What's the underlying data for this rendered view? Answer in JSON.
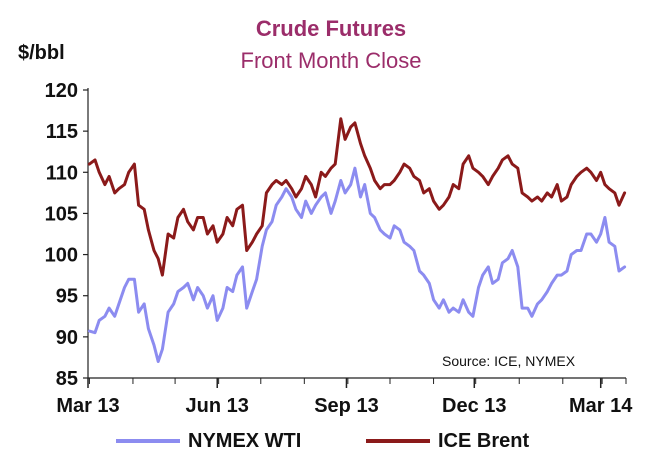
{
  "chart_data": {
    "type": "line",
    "title": "Crude Futures",
    "subtitle": "Front Month Close",
    "ylabel": "$/bbl",
    "source": "Source: ICE, NYMEX",
    "ylim": [
      85,
      120
    ],
    "y_ticks": [
      85,
      90,
      95,
      100,
      105,
      110,
      115,
      120
    ],
    "x_range": [
      "2013-02-28",
      "2014-03-18"
    ],
    "x_ticks": [
      {
        "label": "Mar 13",
        "date": "2013-02-28"
      },
      {
        "label": "Jun 13",
        "date": "2013-05-31"
      },
      {
        "label": "Sep 13",
        "date": "2013-08-31"
      },
      {
        "label": "Dec 13",
        "date": "2013-11-30"
      },
      {
        "label": "Mar 14",
        "date": "2014-02-28"
      }
    ],
    "grid": false,
    "legend_position": "bottom",
    "series": [
      {
        "name": "NYMEX WTI",
        "color": "#8c8cf0",
        "points": [
          [
            "2013-03-01",
            90.7
          ],
          [
            "2013-03-05",
            90.5
          ],
          [
            "2013-03-08",
            92.0
          ],
          [
            "2013-03-12",
            92.5
          ],
          [
            "2013-03-15",
            93.5
          ],
          [
            "2013-03-19",
            92.5
          ],
          [
            "2013-03-22",
            94.0
          ],
          [
            "2013-03-26",
            96.0
          ],
          [
            "2013-03-29",
            97.0
          ],
          [
            "2013-04-02",
            97.0
          ],
          [
            "2013-04-05",
            93.0
          ],
          [
            "2013-04-09",
            94.0
          ],
          [
            "2013-04-12",
            91.0
          ],
          [
            "2013-04-16",
            89.0
          ],
          [
            "2013-04-19",
            87.0
          ],
          [
            "2013-04-22",
            88.5
          ],
          [
            "2013-04-26",
            93.0
          ],
          [
            "2013-04-30",
            94.0
          ],
          [
            "2013-05-03",
            95.5
          ],
          [
            "2013-05-07",
            96.0
          ],
          [
            "2013-05-10",
            96.5
          ],
          [
            "2013-05-14",
            94.5
          ],
          [
            "2013-05-17",
            96.0
          ],
          [
            "2013-05-21",
            95.0
          ],
          [
            "2013-05-24",
            93.5
          ],
          [
            "2013-05-28",
            95.0
          ],
          [
            "2013-05-31",
            92.0
          ],
          [
            "2013-06-04",
            93.5
          ],
          [
            "2013-06-07",
            96.0
          ],
          [
            "2013-06-11",
            95.5
          ],
          [
            "2013-06-14",
            97.5
          ],
          [
            "2013-06-18",
            98.5
          ],
          [
            "2013-06-21",
            93.5
          ],
          [
            "2013-06-25",
            95.5
          ],
          [
            "2013-06-28",
            97.0
          ],
          [
            "2013-07-02",
            101.0
          ],
          [
            "2013-07-05",
            103.0
          ],
          [
            "2013-07-09",
            104.0
          ],
          [
            "2013-07-12",
            106.0
          ],
          [
            "2013-07-16",
            107.0
          ],
          [
            "2013-07-19",
            108.0
          ],
          [
            "2013-07-23",
            107.0
          ],
          [
            "2013-07-26",
            105.5
          ],
          [
            "2013-07-30",
            104.5
          ],
          [
            "2013-08-02",
            106.5
          ],
          [
            "2013-08-06",
            105.0
          ],
          [
            "2013-08-09",
            106.0
          ],
          [
            "2013-08-13",
            107.0
          ],
          [
            "2013-08-16",
            107.5
          ],
          [
            "2013-08-20",
            105.0
          ],
          [
            "2013-08-23",
            106.5
          ],
          [
            "2013-08-27",
            109.0
          ],
          [
            "2013-08-30",
            107.5
          ],
          [
            "2013-09-03",
            108.5
          ],
          [
            "2013-09-06",
            110.5
          ],
          [
            "2013-09-10",
            107.0
          ],
          [
            "2013-09-13",
            108.5
          ],
          [
            "2013-09-17",
            105.0
          ],
          [
            "2013-09-20",
            104.5
          ],
          [
            "2013-09-24",
            103.0
          ],
          [
            "2013-09-27",
            102.5
          ],
          [
            "2013-10-01",
            102.0
          ],
          [
            "2013-10-04",
            103.5
          ],
          [
            "2013-10-08",
            103.0
          ],
          [
            "2013-10-11",
            101.5
          ],
          [
            "2013-10-15",
            101.0
          ],
          [
            "2013-10-18",
            100.5
          ],
          [
            "2013-10-22",
            98.0
          ],
          [
            "2013-10-25",
            97.5
          ],
          [
            "2013-10-29",
            96.5
          ],
          [
            "2013-11-01",
            94.5
          ],
          [
            "2013-11-05",
            93.5
          ],
          [
            "2013-11-08",
            94.5
          ],
          [
            "2013-11-12",
            93.0
          ],
          [
            "2013-11-15",
            93.5
          ],
          [
            "2013-11-19",
            93.0
          ],
          [
            "2013-11-22",
            94.5
          ],
          [
            "2013-11-26",
            93.0
          ],
          [
            "2013-11-29",
            92.5
          ],
          [
            "2013-12-03",
            96.0
          ],
          [
            "2013-12-06",
            97.5
          ],
          [
            "2013-12-10",
            98.5
          ],
          [
            "2013-12-13",
            96.5
          ],
          [
            "2013-12-17",
            97.0
          ],
          [
            "2013-12-20",
            99.0
          ],
          [
            "2013-12-24",
            99.5
          ],
          [
            "2013-12-27",
            100.5
          ],
          [
            "2013-12-31",
            98.5
          ],
          [
            "2014-01-03",
            93.5
          ],
          [
            "2014-01-07",
            93.5
          ],
          [
            "2014-01-10",
            92.5
          ],
          [
            "2014-01-14",
            94.0
          ],
          [
            "2014-01-17",
            94.5
          ],
          [
            "2014-01-21",
            95.5
          ],
          [
            "2014-01-24",
            96.5
          ],
          [
            "2014-01-28",
            97.5
          ],
          [
            "2014-01-31",
            97.5
          ],
          [
            "2014-02-04",
            98.0
          ],
          [
            "2014-02-07",
            100.0
          ],
          [
            "2014-02-11",
            100.5
          ],
          [
            "2014-02-14",
            100.5
          ],
          [
            "2014-02-18",
            102.5
          ],
          [
            "2014-02-21",
            102.5
          ],
          [
            "2014-02-25",
            101.5
          ],
          [
            "2014-02-28",
            102.5
          ],
          [
            "2014-03-03",
            104.5
          ],
          [
            "2014-03-06",
            101.5
          ],
          [
            "2014-03-10",
            101.0
          ],
          [
            "2014-03-13",
            98.0
          ],
          [
            "2014-03-17",
            98.5
          ]
        ]
      },
      {
        "name": "ICE Brent",
        "color": "#8b1a1a",
        "points": [
          [
            "2013-03-01",
            111.0
          ],
          [
            "2013-03-05",
            111.5
          ],
          [
            "2013-03-08",
            110.0
          ],
          [
            "2013-03-12",
            108.5
          ],
          [
            "2013-03-15",
            109.5
          ],
          [
            "2013-03-19",
            107.5
          ],
          [
            "2013-03-22",
            108.0
          ],
          [
            "2013-03-26",
            108.5
          ],
          [
            "2013-03-29",
            110.0
          ],
          [
            "2013-04-02",
            111.0
          ],
          [
            "2013-04-05",
            106.0
          ],
          [
            "2013-04-09",
            105.5
          ],
          [
            "2013-04-12",
            103.0
          ],
          [
            "2013-04-16",
            100.5
          ],
          [
            "2013-04-19",
            99.5
          ],
          [
            "2013-04-22",
            97.5
          ],
          [
            "2013-04-26",
            102.5
          ],
          [
            "2013-04-30",
            102.0
          ],
          [
            "2013-05-03",
            104.5
          ],
          [
            "2013-05-07",
            105.5
          ],
          [
            "2013-05-10",
            104.0
          ],
          [
            "2013-05-14",
            103.0
          ],
          [
            "2013-05-17",
            104.5
          ],
          [
            "2013-05-21",
            104.5
          ],
          [
            "2013-05-24",
            102.5
          ],
          [
            "2013-05-28",
            103.5
          ],
          [
            "2013-05-31",
            101.5
          ],
          [
            "2013-06-04",
            102.5
          ],
          [
            "2013-06-07",
            104.5
          ],
          [
            "2013-06-11",
            103.5
          ],
          [
            "2013-06-14",
            105.5
          ],
          [
            "2013-06-18",
            106.0
          ],
          [
            "2013-06-21",
            100.5
          ],
          [
            "2013-06-25",
            101.5
          ],
          [
            "2013-06-28",
            102.5
          ],
          [
            "2013-07-02",
            103.5
          ],
          [
            "2013-07-05",
            107.5
          ],
          [
            "2013-07-09",
            108.5
          ],
          [
            "2013-07-12",
            109.0
          ],
          [
            "2013-07-16",
            108.5
          ],
          [
            "2013-07-19",
            109.0
          ],
          [
            "2013-07-23",
            108.0
          ],
          [
            "2013-07-26",
            107.0
          ],
          [
            "2013-07-30",
            108.0
          ],
          [
            "2013-08-02",
            109.5
          ],
          [
            "2013-08-06",
            108.5
          ],
          [
            "2013-08-09",
            107.0
          ],
          [
            "2013-08-13",
            110.0
          ],
          [
            "2013-08-16",
            109.5
          ],
          [
            "2013-08-20",
            110.5
          ],
          [
            "2013-08-23",
            111.0
          ],
          [
            "2013-08-27",
            116.5
          ],
          [
            "2013-08-30",
            114.0
          ],
          [
            "2013-09-03",
            115.5
          ],
          [
            "2013-09-06",
            116.0
          ],
          [
            "2013-09-10",
            113.5
          ],
          [
            "2013-09-13",
            112.0
          ],
          [
            "2013-09-17",
            110.5
          ],
          [
            "2013-09-20",
            109.0
          ],
          [
            "2013-09-24",
            108.0
          ],
          [
            "2013-09-27",
            108.5
          ],
          [
            "2013-10-01",
            108.5
          ],
          [
            "2013-10-04",
            109.0
          ],
          [
            "2013-10-08",
            110.0
          ],
          [
            "2013-10-11",
            111.0
          ],
          [
            "2013-10-15",
            110.5
          ],
          [
            "2013-10-18",
            109.5
          ],
          [
            "2013-10-22",
            109.0
          ],
          [
            "2013-10-25",
            107.5
          ],
          [
            "2013-10-29",
            108.0
          ],
          [
            "2013-11-01",
            106.5
          ],
          [
            "2013-11-05",
            105.5
          ],
          [
            "2013-11-08",
            106.0
          ],
          [
            "2013-11-12",
            107.0
          ],
          [
            "2013-11-15",
            108.5
          ],
          [
            "2013-11-19",
            108.0
          ],
          [
            "2013-11-22",
            111.0
          ],
          [
            "2013-11-26",
            112.0
          ],
          [
            "2013-11-29",
            110.5
          ],
          [
            "2013-12-03",
            110.0
          ],
          [
            "2013-12-06",
            109.5
          ],
          [
            "2013-12-10",
            108.5
          ],
          [
            "2013-12-13",
            109.5
          ],
          [
            "2013-12-17",
            110.5
          ],
          [
            "2013-12-20",
            111.5
          ],
          [
            "2013-12-24",
            112.0
          ],
          [
            "2013-12-27",
            111.0
          ],
          [
            "2013-12-31",
            110.5
          ],
          [
            "2014-01-03",
            107.5
          ],
          [
            "2014-01-07",
            107.0
          ],
          [
            "2014-01-10",
            106.5
          ],
          [
            "2014-01-14",
            107.0
          ],
          [
            "2014-01-17",
            106.5
          ],
          [
            "2014-01-21",
            107.5
          ],
          [
            "2014-01-24",
            107.0
          ],
          [
            "2014-01-28",
            108.5
          ],
          [
            "2014-01-31",
            106.5
          ],
          [
            "2014-02-04",
            107.0
          ],
          [
            "2014-02-07",
            108.5
          ],
          [
            "2014-02-11",
            109.5
          ],
          [
            "2014-02-14",
            110.0
          ],
          [
            "2014-02-18",
            110.5
          ],
          [
            "2014-02-21",
            110.0
          ],
          [
            "2014-02-25",
            109.0
          ],
          [
            "2014-02-28",
            110.0
          ],
          [
            "2014-03-03",
            108.5
          ],
          [
            "2014-03-06",
            108.0
          ],
          [
            "2014-03-10",
            107.5
          ],
          [
            "2014-03-13",
            106.0
          ],
          [
            "2014-03-17",
            107.5
          ]
        ]
      }
    ]
  }
}
